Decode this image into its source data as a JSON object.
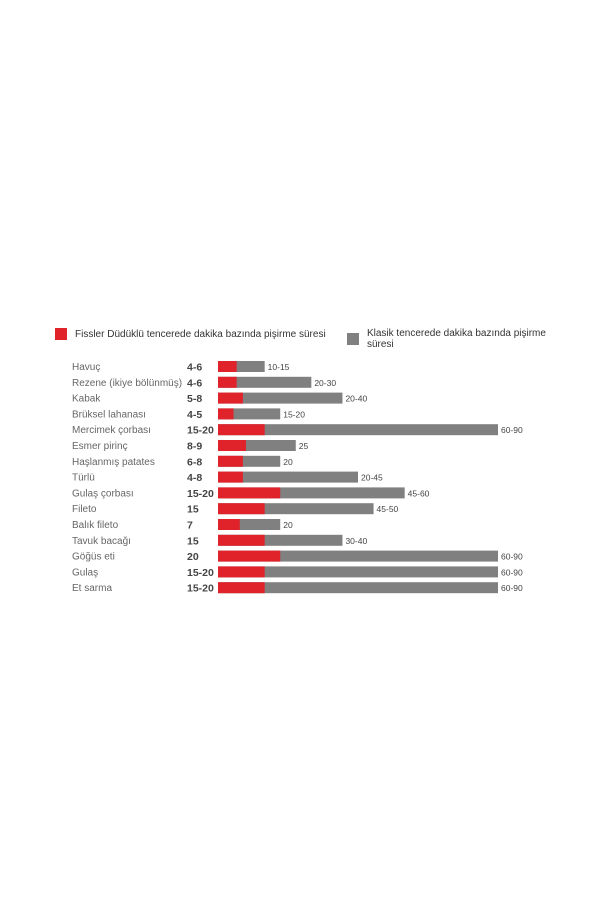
{
  "legend": {
    "pressure_label": "Fissler Düdüklü tencerede dakika bazında pişirme süresi",
    "classic_label": "Klasik tencerede dakika bazında pişirme süresi"
  },
  "colors": {
    "pressure": "#e0222b",
    "classic": "#808080",
    "category_text": "#666666",
    "value_text": "#444444"
  },
  "chart_data": {
    "type": "bar",
    "orientation": "horizontal",
    "unit": "minutes",
    "xlim": [
      0,
      90
    ],
    "grid": false,
    "legend_position": "top",
    "categories": [
      "Havuç",
      "Rezene (ikiye bölünmüş)",
      "Kabak",
      "Brüksel lahanası",
      "Mercimek çorbası",
      "Esmer pirinç",
      "Haşlanmış patates",
      "Türlü",
      "Gulaş çorbası",
      "Fileto",
      "Balık fileto",
      "Tavuk bacağı",
      "Göğüs eti",
      "Gulaş",
      "Et sarma"
    ],
    "series": [
      {
        "name": "Fissler Düdüklü tencerede dakika bazında pişirme süresi",
        "labels": [
          "4-6",
          "4-6",
          "5-8",
          "4-5",
          "15-20",
          "8-9",
          "6-8",
          "4-8",
          "15-20",
          "15",
          "7",
          "15",
          "20",
          "15-20",
          "15-20"
        ],
        "values": [
          6,
          6,
          8,
          5,
          15,
          9,
          8,
          8,
          20,
          15,
          7,
          15,
          20,
          15,
          15
        ]
      },
      {
        "name": "Klasik tencerede dakika bazında pişirme süresi",
        "labels": [
          "10-15",
          "20-30",
          "20-40",
          "15-20",
          "60-90",
          "25",
          "20",
          "20-45",
          "45-60",
          "45-50",
          "20",
          "30-40",
          "60-90",
          "60-90",
          "60-90"
        ],
        "values": [
          15,
          30,
          40,
          20,
          90,
          25,
          20,
          45,
          60,
          50,
          20,
          40,
          90,
          90,
          90
        ]
      }
    ]
  }
}
